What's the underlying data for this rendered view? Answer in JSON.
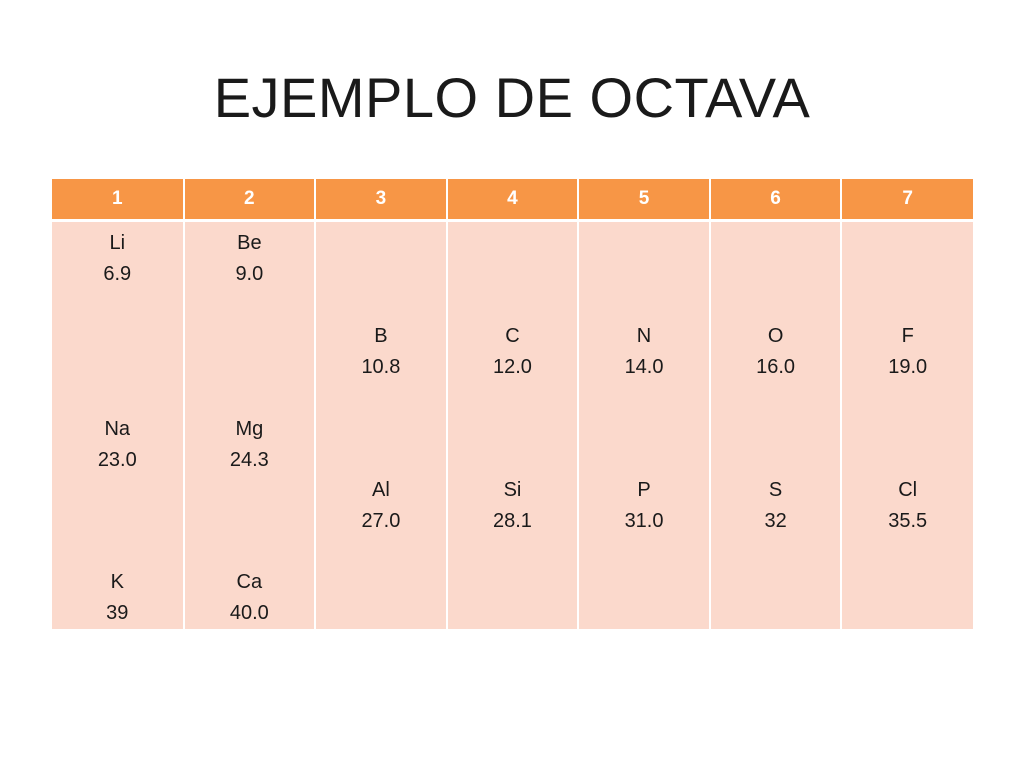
{
  "title": "EJEMPLO DE OCTAVA",
  "colors": {
    "header_bg": "#f79646",
    "body_bg": "#fbd9cc",
    "header_text": "#ffffff"
  },
  "table": {
    "headers": [
      "1",
      "2",
      "3",
      "4",
      "5",
      "6",
      "7"
    ],
    "columns": [
      [
        {
          "symbol": "Li",
          "mass": "6.9"
        },
        {
          "symbol": "Na",
          "mass": "23.0"
        },
        {
          "symbol": "K",
          "mass": "39"
        }
      ],
      [
        {
          "symbol": "Be",
          "mass": "9.0"
        },
        {
          "symbol": "Mg",
          "mass": "24.3"
        },
        {
          "symbol": "Ca",
          "mass": "40.0"
        }
      ],
      [
        {
          "symbol": "B",
          "mass": "10.8"
        },
        {
          "symbol": "Al",
          "mass": "27.0"
        }
      ],
      [
        {
          "symbol": "C",
          "mass": "12.0"
        },
        {
          "symbol": "Si",
          "mass": "28.1"
        }
      ],
      [
        {
          "symbol": "N",
          "mass": "14.0"
        },
        {
          "symbol": "P",
          "mass": "31.0"
        }
      ],
      [
        {
          "symbol": "O",
          "mass": "16.0"
        },
        {
          "symbol": "S",
          "mass": "32"
        }
      ],
      [
        {
          "symbol": "F",
          "mass": "19.0"
        },
        {
          "symbol": "Cl",
          "mass": "35.5"
        }
      ]
    ]
  }
}
